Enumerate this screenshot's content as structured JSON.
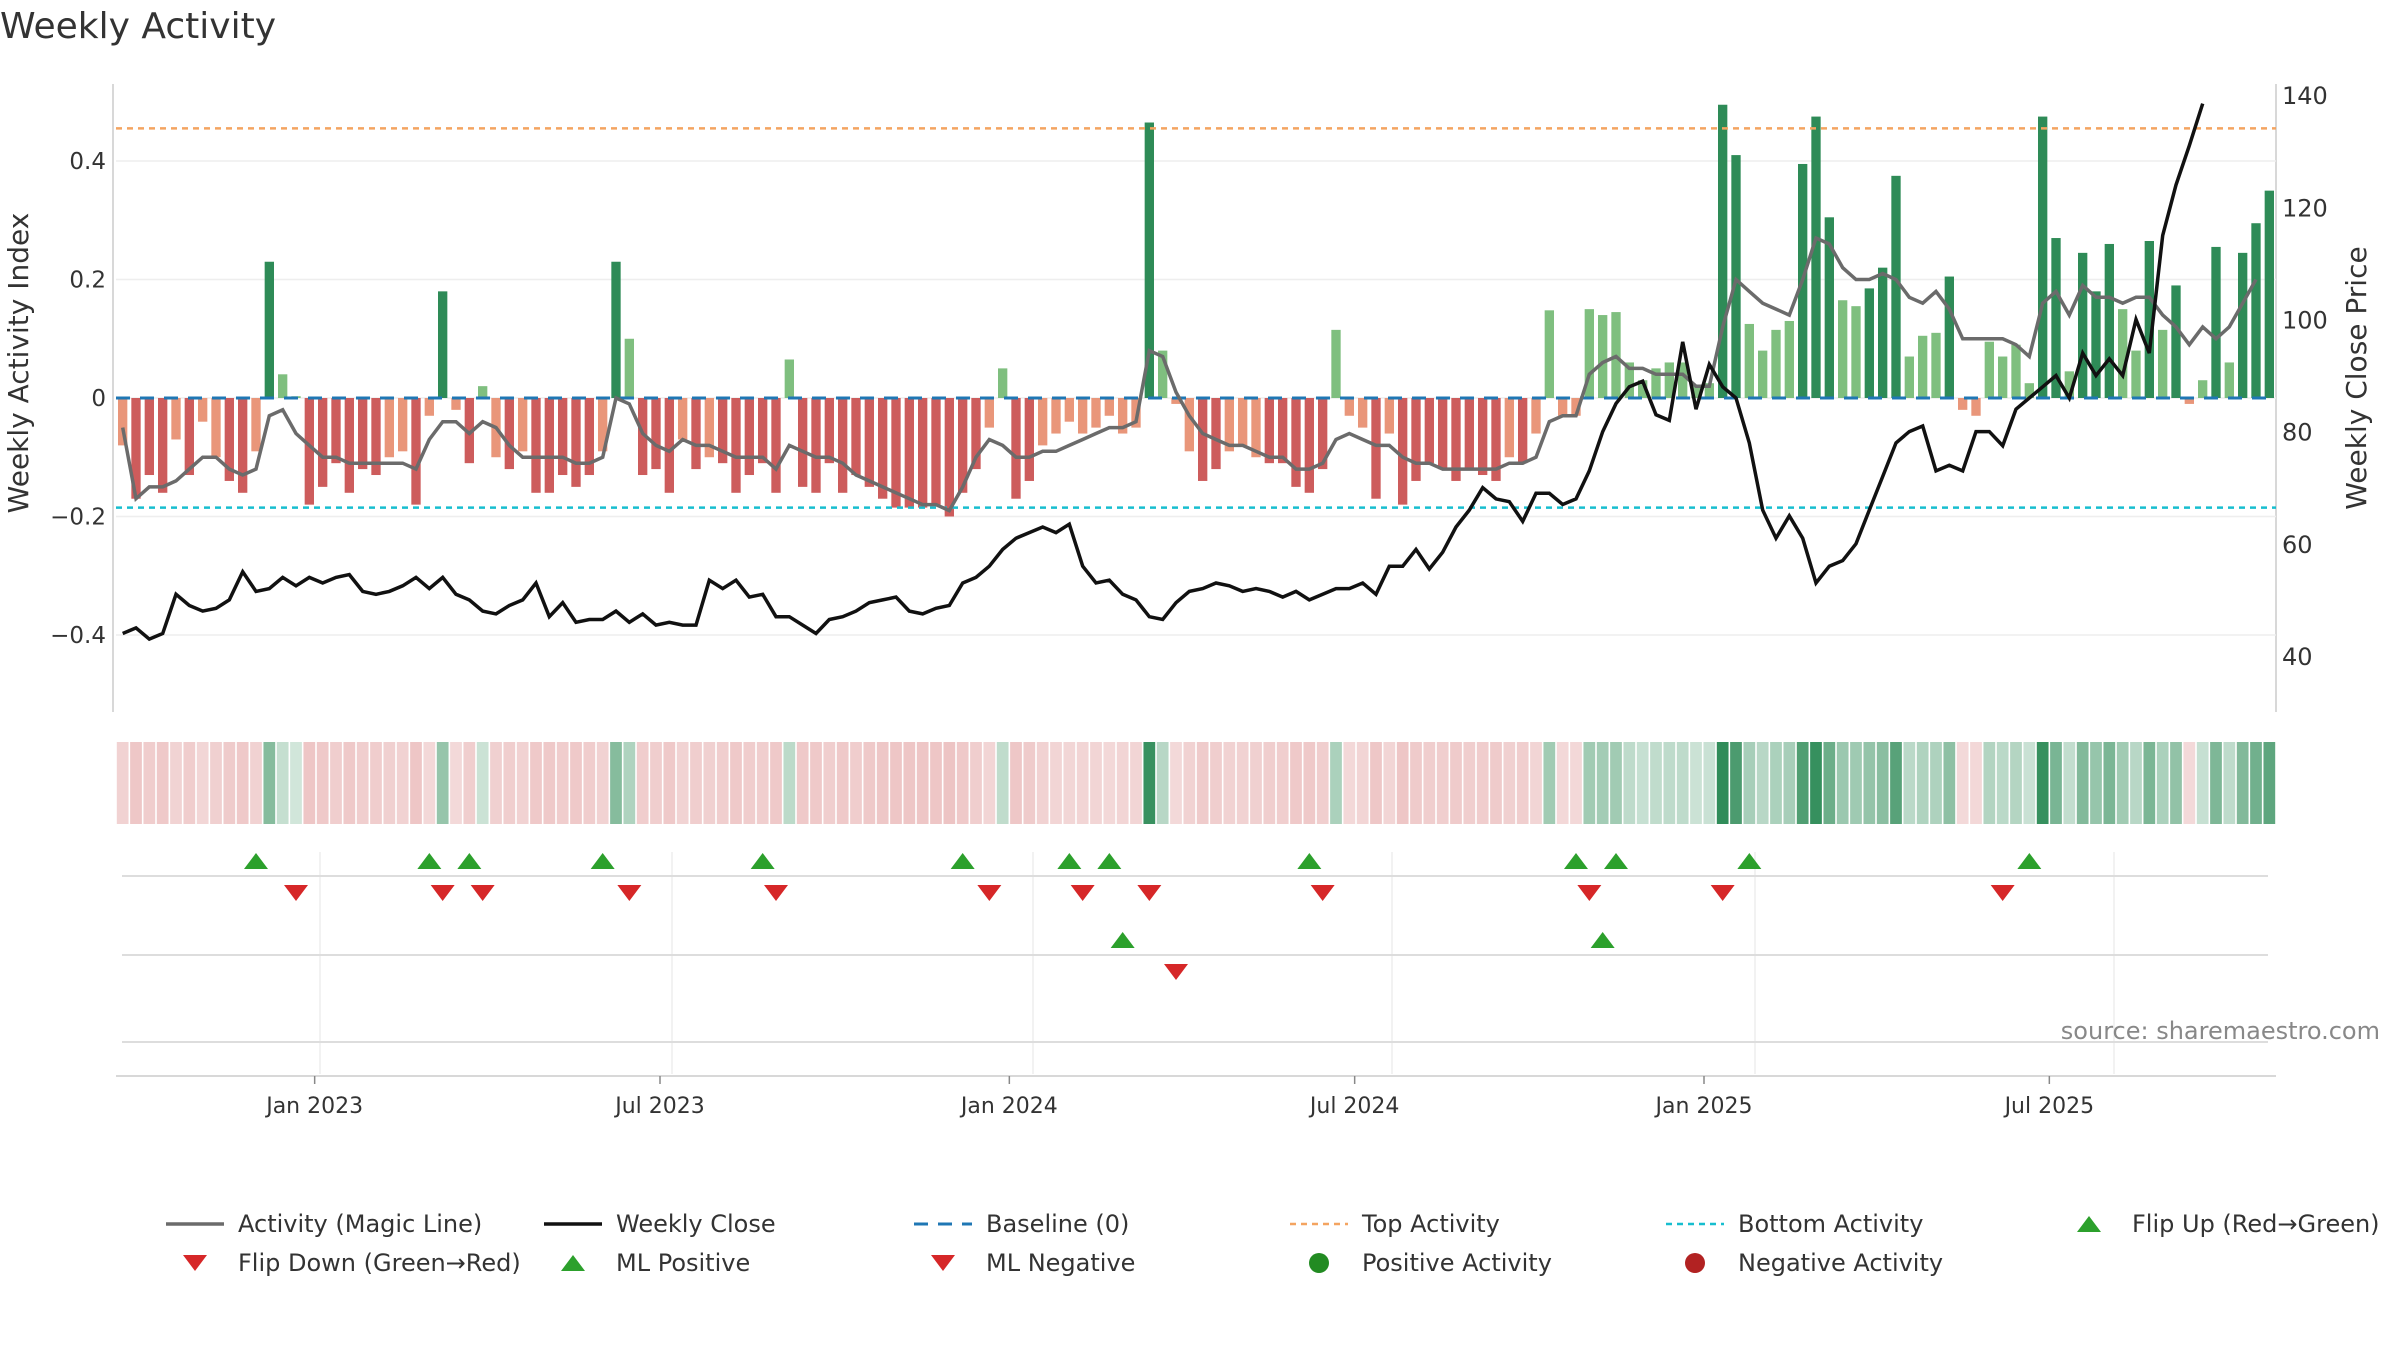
{
  "title": "Weekly Activity",
  "source": "source: sharemaestro.com",
  "colors": {
    "pos_strong": "#2e8b57",
    "pos_light": "#7fbf7f",
    "neg_strong": "#cd5c5c",
    "neg_light": "#e9967a",
    "magic_line": "#6b6b6b",
    "close_line": "#111111",
    "baseline": "#1f77b4",
    "top_line": "#f4a460",
    "bottom_line": "#17becf",
    "flip_up": "#2ca02c",
    "flip_down": "#d62728",
    "ml_pos": "#2ca02c",
    "ml_neg": "#d62728",
    "pos_dot": "#228b22",
    "neg_dot": "#b22222"
  },
  "chart_data": {
    "type": "bar",
    "title": "Weekly Activity",
    "ylabel_left": "Weekly Activity Index",
    "ylabel_right": "Weekly Close Price",
    "ylim_left": [
      -0.53,
      0.53
    ],
    "ylim_right": [
      30,
      142
    ],
    "yticks_left": [
      0.4,
      0.2,
      0,
      -0.2,
      -0.4
    ],
    "yticks_left_labels": [
      "0.4",
      "0.2",
      "0",
      "−0.2",
      "−0.4"
    ],
    "yticks_right": [
      140,
      120,
      100,
      80,
      60,
      40
    ],
    "x_tick_labels": [
      "Jan 2023",
      "Jul 2023",
      "Jan 2024",
      "Jul 2024",
      "Jan 2025",
      "Jul 2025"
    ],
    "x_tick_weeks": [
      14.4,
      40.3,
      66.5,
      92.4,
      118.6,
      144.5
    ],
    "top_activity": 0.455,
    "bottom_activity": -0.185,
    "baseline": 0,
    "activity": [
      -0.08,
      -0.17,
      -0.13,
      -0.16,
      -0.07,
      -0.13,
      -0.04,
      -0.1,
      -0.14,
      -0.16,
      -0.09,
      0.23,
      0.04,
      0.003,
      -0.18,
      -0.15,
      -0.11,
      -0.16,
      -0.12,
      -0.13,
      -0.1,
      -0.09,
      -0.18,
      -0.03,
      0.18,
      -0.02,
      -0.11,
      0.02,
      -0.1,
      -0.12,
      -0.09,
      -0.16,
      -0.16,
      -0.13,
      -0.15,
      -0.13,
      -0.09,
      0.23,
      0.1,
      -0.13,
      -0.12,
      -0.16,
      -0.07,
      -0.12,
      -0.1,
      -0.11,
      -0.16,
      -0.13,
      -0.11,
      -0.16,
      0.065,
      -0.15,
      -0.16,
      -0.11,
      -0.16,
      -0.13,
      -0.15,
      -0.17,
      -0.185,
      -0.185,
      -0.185,
      -0.18,
      -0.2,
      -0.16,
      -0.12,
      -0.05,
      0.05,
      -0.17,
      -0.14,
      -0.08,
      -0.06,
      -0.04,
      -0.06,
      -0.05,
      -0.03,
      -0.06,
      -0.05,
      0.465,
      0.08,
      -0.01,
      -0.09,
      -0.14,
      -0.12,
      -0.09,
      -0.08,
      -0.1,
      -0.11,
      -0.11,
      -0.15,
      -0.16,
      -0.12,
      0.115,
      -0.03,
      -0.05,
      -0.17,
      -0.06,
      -0.18,
      -0.14,
      -0.11,
      -0.12,
      -0.14,
      -0.12,
      -0.13,
      -0.14,
      -0.1,
      -0.11,
      -0.06,
      0.148,
      -0.03,
      -0.03,
      0.15,
      0.14,
      0.145,
      0.06,
      0.03,
      0.05,
      0.06,
      0.06,
      0.02,
      0.025,
      0.495,
      0.41,
      0.125,
      0.08,
      0.115,
      0.13,
      0.395,
      0.475,
      0.305,
      0.165,
      0.155,
      0.185,
      0.22,
      0.375,
      0.07,
      0.105,
      0.11,
      0.205,
      -0.02,
      -0.03,
      0.095,
      0.07,
      0.09,
      0.025,
      0.475,
      0.27,
      0.045,
      0.245,
      0.18,
      0.26,
      0.15,
      0.08,
      0.265,
      0.115,
      0.19,
      -0.01,
      0.03,
      0.255,
      0.06,
      0.245,
      0.295,
      0.35
    ],
    "activity_magic_line": [
      -0.05,
      -0.17,
      -0.15,
      -0.15,
      -0.14,
      -0.12,
      -0.1,
      -0.1,
      -0.12,
      -0.13,
      -0.12,
      -0.03,
      -0.02,
      -0.06,
      -0.08,
      -0.1,
      -0.1,
      -0.11,
      -0.11,
      -0.11,
      -0.11,
      -0.11,
      -0.12,
      -0.07,
      -0.04,
      -0.04,
      -0.06,
      -0.04,
      -0.05,
      -0.08,
      -0.1,
      -0.1,
      -0.1,
      -0.1,
      -0.11,
      -0.11,
      -0.1,
      0,
      -0.01,
      -0.06,
      -0.08,
      -0.09,
      -0.07,
      -0.08,
      -0.08,
      -0.09,
      -0.1,
      -0.1,
      -0.1,
      -0.12,
      -0.08,
      -0.09,
      -0.1,
      -0.1,
      -0.11,
      -0.13,
      -0.14,
      -0.15,
      -0.16,
      -0.17,
      -0.18,
      -0.18,
      -0.19,
      -0.15,
      -0.1,
      -0.07,
      -0.08,
      -0.1,
      -0.1,
      -0.09,
      -0.09,
      -0.08,
      -0.07,
      -0.06,
      -0.05,
      -0.05,
      -0.04,
      0.08,
      0.07,
      0.01,
      -0.03,
      -0.06,
      -0.07,
      -0.08,
      -0.08,
      -0.09,
      -0.1,
      -0.1,
      -0.12,
      -0.12,
      -0.11,
      -0.07,
      -0.06,
      -0.07,
      -0.08,
      -0.08,
      -0.1,
      -0.11,
      -0.11,
      -0.12,
      -0.12,
      -0.12,
      -0.12,
      -0.12,
      -0.11,
      -0.11,
      -0.1,
      -0.04,
      -0.03,
      -0.03,
      0.04,
      0.06,
      0.07,
      0.05,
      0.05,
      0.04,
      0.04,
      0.04,
      0.02,
      0.02,
      0.12,
      0.2,
      0.18,
      0.16,
      0.15,
      0.14,
      0.2,
      0.27,
      0.26,
      0.22,
      0.2,
      0.2,
      0.21,
      0.2,
      0.17,
      0.16,
      0.18,
      0.15,
      0.1,
      0.1,
      0.1,
      0.1,
      0.09,
      0.07,
      0.16,
      0.18,
      0.14,
      0.19,
      0.17,
      0.17,
      0.16,
      0.17,
      0.17,
      0.14,
      0.12,
      0.09,
      0.12,
      0.1,
      0.12,
      0.16,
      0.2
    ],
    "weekly_close": [
      44,
      45,
      43,
      44,
      51,
      49,
      48,
      48.5,
      50,
      55,
      51.5,
      52,
      54,
      52.5,
      54,
      53,
      54,
      54.5,
      51.5,
      51,
      51.5,
      52.5,
      54,
      52,
      54,
      51,
      50,
      48,
      47.5,
      49,
      50,
      53,
      47,
      49.5,
      46,
      46.5,
      46.5,
      48,
      46,
      47.5,
      45.5,
      46,
      45.5,
      45.5,
      53.5,
      52,
      53.5,
      50.5,
      51,
      47,
      47,
      45.5,
      44,
      46.5,
      47,
      48,
      49.5,
      50,
      50.5,
      48,
      47.5,
      48.5,
      49,
      53,
      54,
      56,
      59,
      61,
      62,
      63,
      62,
      63.5,
      56,
      53,
      53.5,
      51,
      50,
      47,
      46.5,
      49.5,
      51.5,
      52,
      53,
      52.5,
      51.5,
      52,
      51.5,
      50.5,
      51.5,
      50,
      51,
      52,
      52,
      53,
      51,
      56,
      56,
      59,
      55.5,
      58.5,
      63,
      66,
      70,
      68,
      67.5,
      64,
      69,
      69,
      67,
      68,
      73,
      80,
      85,
      88,
      89,
      83,
      82,
      96,
      84,
      92,
      88,
      86,
      78,
      66,
      61,
      65,
      61,
      53,
      56,
      57,
      60,
      66,
      72,
      78,
      80,
      81,
      73,
      74,
      73,
      80,
      80,
      77.5,
      84,
      86,
      88,
      90,
      86,
      94,
      90,
      93,
      90,
      100,
      94,
      115,
      124,
      131,
      138.5
    ],
    "heatmap_tone": "mirrors activity sign & magnitude",
    "flip_up_weeks": [
      10,
      23,
      26,
      36,
      48,
      63,
      71,
      74,
      89,
      109,
      112,
      122,
      143
    ],
    "flip_down_weeks": [
      13,
      24,
      27,
      38,
      49,
      65,
      72,
      77,
      90,
      110,
      120,
      141
    ],
    "ml_positive_weeks": [
      75,
      111
    ],
    "ml_negative_weeks": [
      79
    ]
  },
  "legend": [
    {
      "label": "Activity (Magic Line)",
      "kind": "line",
      "color": "#6b6b6b"
    },
    {
      "label": "Weekly Close",
      "kind": "line",
      "color": "#111111"
    },
    {
      "label": "Baseline (0)",
      "kind": "dash",
      "color": "#1f77b4"
    },
    {
      "label": "Top Activity",
      "kind": "dot",
      "color": "#f4a460"
    },
    {
      "label": "Bottom Activity",
      "kind": "dot",
      "color": "#17becf"
    },
    {
      "label": "Flip Up (Red→Green)",
      "kind": "tri-up",
      "color": "#2ca02c"
    },
    {
      "label": "Flip Down (Green→Red)",
      "kind": "tri-down",
      "color": "#d62728"
    },
    {
      "label": "ML Positive",
      "kind": "tri-up",
      "color": "#2ca02c"
    },
    {
      "label": "ML Negative",
      "kind": "tri-down",
      "color": "#d62728"
    },
    {
      "label": "Positive Activity",
      "kind": "circle",
      "color": "#228b22"
    },
    {
      "label": "Negative Activity",
      "kind": "circle",
      "color": "#b22222"
    }
  ]
}
